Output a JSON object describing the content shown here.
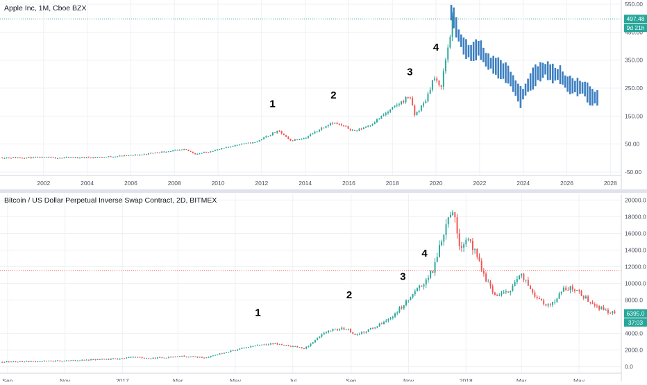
{
  "colors": {
    "up": "#26a69a",
    "down": "#ef5350",
    "projection": "#3d7fc1",
    "grid": "#eef0f3",
    "axis_text": "#4c525e",
    "last_price_bg": "#26a69a",
    "btc_level_line": "#ef5350"
  },
  "chart_data": [
    {
      "type": "candlestick",
      "title": "Apple Inc, 1M, Cboe BZX",
      "price_scale": {
        "ticks": [
          "550.00",
          "450.00",
          "350.00",
          "250.00",
          "150.00",
          "50.00",
          "-50.00"
        ],
        "tick_values": [
          550,
          450,
          350,
          250,
          150,
          50,
          -50
        ],
        "ylim": [
          -60,
          565
        ]
      },
      "time_scale": {
        "ticks": [
          "2002",
          "2004",
          "2006",
          "2008",
          "2010",
          "2012",
          "2014",
          "2016",
          "2018",
          "2020",
          "2022",
          "2024",
          "2026",
          "2028"
        ],
        "xlim": [
          2000.0,
          2028.5
        ]
      },
      "last_price": {
        "value": "497.48",
        "countdown": "9d 21h",
        "level": 497.48
      },
      "annotations": [
        {
          "label": "1",
          "x": 2012.5,
          "y": 182
        },
        {
          "label": "2",
          "x": 2015.3,
          "y": 213
        },
        {
          "label": "3",
          "x": 2018.8,
          "y": 296
        },
        {
          "label": "4",
          "x": 2020.0,
          "y": 384
        }
      ],
      "anchors": [
        [
          2000.0,
          1.5
        ],
        [
          2003.0,
          1.2
        ],
        [
          2004.5,
          2.5
        ],
        [
          2005.5,
          7
        ],
        [
          2006.5,
          12
        ],
        [
          2007.0,
          18
        ],
        [
          2007.9,
          26
        ],
        [
          2008.5,
          30
        ],
        [
          2009.0,
          14
        ],
        [
          2010.0,
          30
        ],
        [
          2011.0,
          50
        ],
        [
          2011.7,
          56
        ],
        [
          2012.5,
          88
        ],
        [
          2012.8,
          96
        ],
        [
          2013.3,
          62
        ],
        [
          2014.0,
          72
        ],
        [
          2015.2,
          128
        ],
        [
          2015.7,
          115
        ],
        [
          2016.3,
          96
        ],
        [
          2017.0,
          120
        ],
        [
          2017.8,
          165
        ],
        [
          2018.5,
          205
        ],
        [
          2018.8,
          225
        ],
        [
          2019.0,
          152
        ],
        [
          2019.5,
          200
        ],
        [
          2019.9,
          290
        ],
        [
          2020.2,
          245
        ],
        [
          2020.6,
          420
        ],
        [
          2020.75,
          490
        ]
      ],
      "projection": {
        "x_start": 2020.7,
        "x_end": 2027.4,
        "bars": 60,
        "path": [
          [
            2020.75,
            520
          ],
          [
            2021.0,
            445
          ],
          [
            2021.3,
            395
          ],
          [
            2021.6,
            375
          ],
          [
            2022.0,
            395
          ],
          [
            2022.3,
            350
          ],
          [
            2022.8,
            325
          ],
          [
            2023.3,
            300
          ],
          [
            2023.9,
            215
          ],
          [
            2024.2,
            258
          ],
          [
            2024.6,
            300
          ],
          [
            2025.0,
            318
          ],
          [
            2025.4,
            300
          ],
          [
            2025.7,
            298
          ],
          [
            2026.0,
            265
          ],
          [
            2026.4,
            255
          ],
          [
            2026.8,
            250
          ],
          [
            2027.1,
            218
          ],
          [
            2027.4,
            215
          ]
        ]
      }
    },
    {
      "type": "candlestick",
      "title": "Bitcoin / US Dollar Perpetual Inverse Swap Contract, 2D, BITMEX",
      "price_scale": {
        "ticks": [
          "20000.0",
          "18000.0",
          "16000.0",
          "14000.0",
          "12000.0",
          "10000.0",
          "8000.0",
          "4000.0",
          "2000.0",
          "0.0"
        ],
        "tick_values": [
          20000,
          18000,
          16000,
          14000,
          12000,
          10000,
          8000,
          4000,
          2000,
          0
        ],
        "ylim": [
          -700,
          20700
        ]
      },
      "time_scale": {
        "ticks": [
          "Sep",
          "Nov",
          "2017",
          "Mar",
          "May",
          "Jul",
          "Sep",
          "Nov",
          "2018",
          "Mar",
          "May"
        ],
        "tick_days": [
          0,
          61,
          122,
          181,
          242,
          303,
          365,
          426,
          487,
          546,
          607
        ],
        "xlim": [
          -8,
          652
        ]
      },
      "last_price": {
        "value": "6395.0",
        "countdown": "37:03",
        "level": 6395
      },
      "level_line": 11550,
      "annotations": [
        {
          "label": "1",
          "x": 266,
          "y": 6100
        },
        {
          "label": "2",
          "x": 363,
          "y": 8200
        },
        {
          "label": "3",
          "x": 420,
          "y": 10400
        },
        {
          "label": "4",
          "x": 443,
          "y": 13200
        }
      ],
      "anchors": [
        [
          -8,
          580
        ],
        [
          60,
          700
        ],
        [
          120,
          950
        ],
        [
          130,
          1200
        ],
        [
          150,
          1000
        ],
        [
          185,
          1250
        ],
        [
          210,
          1100
        ],
        [
          230,
          1700
        ],
        [
          265,
          2600
        ],
        [
          280,
          2800
        ],
        [
          300,
          2500
        ],
        [
          316,
          2200
        ],
        [
          340,
          4300
        ],
        [
          360,
          4600
        ],
        [
          370,
          3800
        ],
        [
          390,
          4700
        ],
        [
          405,
          5700
        ],
        [
          420,
          7300
        ],
        [
          440,
          9800
        ],
        [
          452,
          11500
        ],
        [
          460,
          15000
        ],
        [
          467,
          17500
        ],
        [
          472,
          19300
        ],
        [
          480,
          14600
        ],
        [
          490,
          15500
        ],
        [
          505,
          11200
        ],
        [
          518,
          8500
        ],
        [
          530,
          8800
        ],
        [
          545,
          11000
        ],
        [
          560,
          8700
        ],
        [
          575,
          7200
        ],
        [
          590,
          9200
        ],
        [
          600,
          9500
        ],
        [
          613,
          8300
        ],
        [
          630,
          7000
        ],
        [
          645,
          6395
        ]
      ]
    }
  ]
}
